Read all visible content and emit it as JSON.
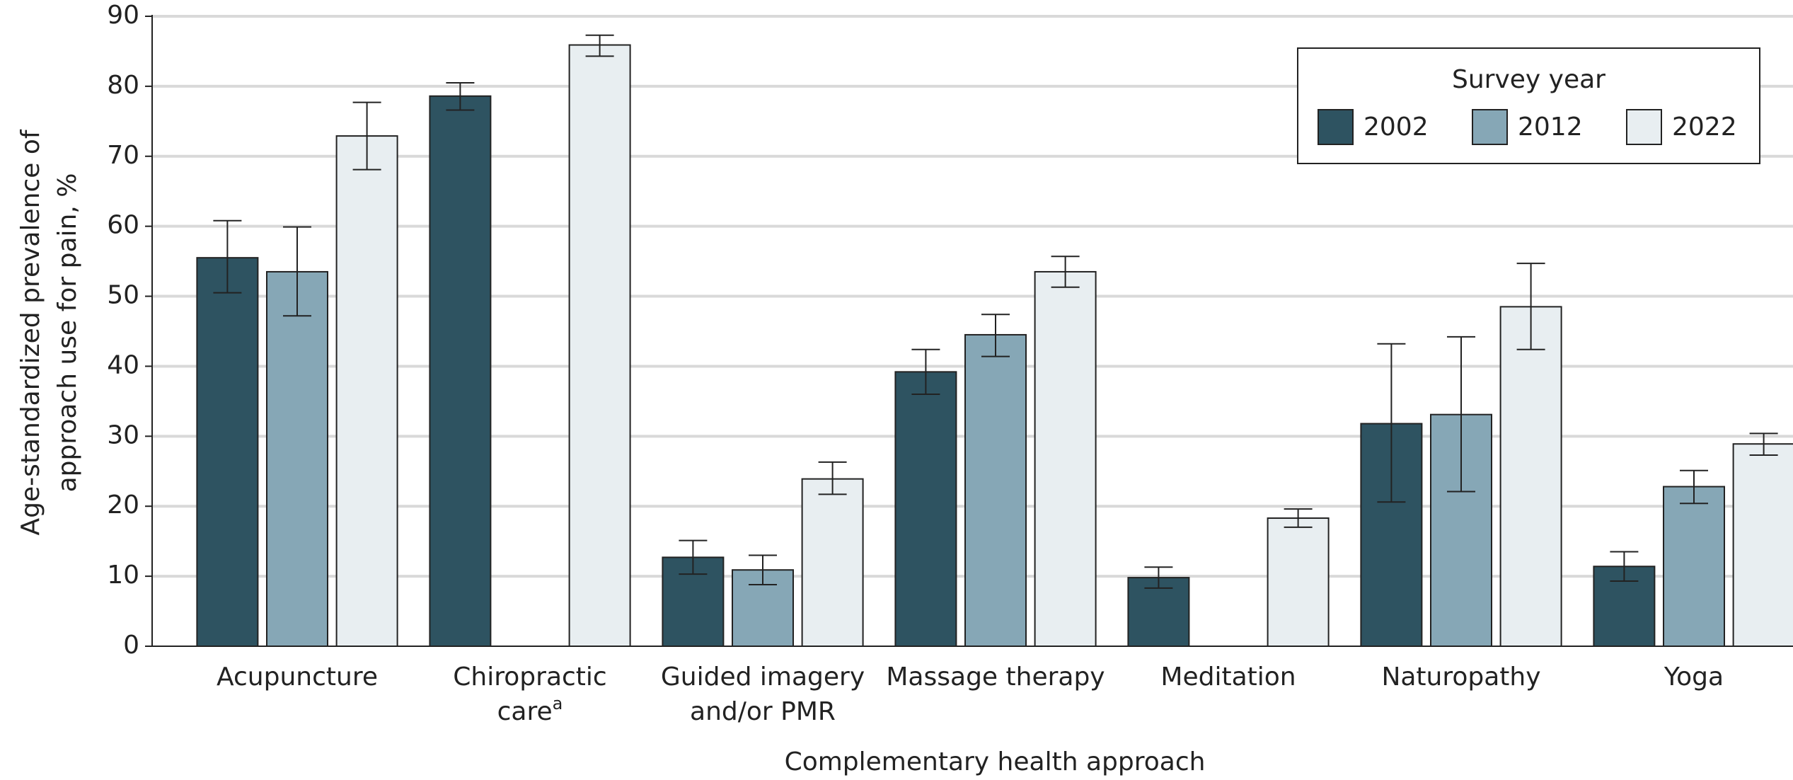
{
  "chart_data": {
    "type": "bar",
    "xlabel": "Complementary health approach",
    "ylabel": [
      "Age-standardized prevalence of",
      "approach use for pain, %"
    ],
    "categories": [
      "Acupuncture",
      [
        "Chiropractic",
        "care"
      ],
      [
        "Guided imagery",
        "and/or PMR"
      ],
      "Massage therapy",
      "Meditation",
      "Naturopathy",
      "Yoga"
    ],
    "category_footnotes": [
      null,
      "a",
      null,
      null,
      null,
      null,
      null
    ],
    "legend_title": "Survey year",
    "legend": "upper right",
    "grid": true,
    "ylim": [
      0,
      90
    ],
    "yticks": [
      0,
      10,
      20,
      30,
      40,
      50,
      60,
      70,
      80,
      90
    ],
    "series": [
      {
        "name": "2002",
        "color": "#2e5361",
        "values": [
          55.5,
          78.6,
          12.7,
          39.2,
          9.8,
          31.8,
          11.4
        ],
        "lower": [
          50.5,
          76.6,
          10.3,
          36.0,
          8.3,
          20.6,
          9.3
        ],
        "upper": [
          60.8,
          80.5,
          15.1,
          42.4,
          11.3,
          43.2,
          13.5
        ]
      },
      {
        "name": "2012",
        "color": "#86a7b6",
        "values": [
          53.5,
          null,
          10.9,
          44.5,
          null,
          33.1,
          22.8
        ],
        "lower": [
          47.2,
          null,
          8.8,
          41.4,
          null,
          22.1,
          20.4
        ],
        "upper": [
          59.9,
          null,
          13.0,
          47.4,
          null,
          44.2,
          25.1
        ]
      },
      {
        "name": "2022",
        "color": "#e8eef1",
        "values": [
          72.9,
          85.9,
          23.9,
          53.5,
          18.3,
          48.5,
          28.9
        ],
        "lower": [
          68.1,
          84.3,
          21.7,
          51.3,
          17.0,
          42.4,
          27.3
        ],
        "upper": [
          77.7,
          87.3,
          26.3,
          55.7,
          19.6,
          54.7,
          30.4
        ]
      }
    ]
  }
}
